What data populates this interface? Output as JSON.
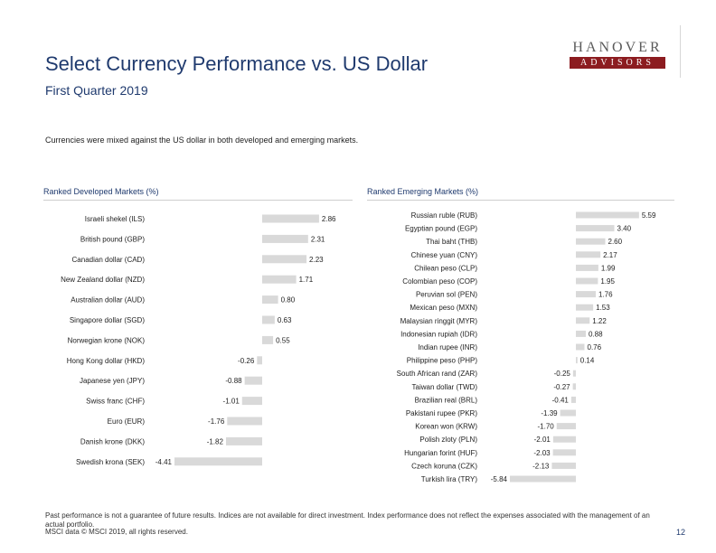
{
  "header": {
    "title": "Select Currency Performance vs. US Dollar",
    "subtitle": "First Quarter 2019",
    "intro": "Currencies were mixed against the US dollar in both developed and emerging markets."
  },
  "logo": {
    "top": "HANOVER",
    "bottom": "ADVISORS",
    "accent_color": "#8c1c20"
  },
  "chart_data": [
    {
      "type": "bar",
      "orientation": "horizontal",
      "title": "Ranked Developed Markets (%)",
      "categories": [
        "Israeli shekel (ILS)",
        "British pound (GBP)",
        "Canadian dollar (CAD)",
        "New Zealand dollar (NZD)",
        "Australian dollar (AUD)",
        "Singapore dollar (SGD)",
        "Norwegian krone (NOK)",
        "Hong Kong dollar (HKD)",
        "Japanese yen (JPY)",
        "Swiss franc (CHF)",
        "Euro (EUR)",
        "Danish krone (DKK)",
        "Swedish krona (SEK)"
      ],
      "values": [
        2.86,
        2.31,
        2.23,
        1.71,
        0.8,
        0.63,
        0.55,
        -0.26,
        -0.88,
        -1.01,
        -1.76,
        -1.82,
        -4.41
      ],
      "value_labels": [
        "2.86",
        "2.31",
        "2.23",
        "1.71",
        "0.80",
        "0.63",
        "0.55",
        "-0.26",
        "-0.88",
        "-1.01",
        "-1.76",
        "-1.82",
        "-4.41"
      ],
      "bar_color": "#d9d9d9"
    },
    {
      "type": "bar",
      "orientation": "horizontal",
      "title": "Ranked Emerging Markets (%)",
      "categories": [
        "Russian ruble (RUB)",
        "Egyptian pound (EGP)",
        "Thai baht (THB)",
        "Chinese yuan (CNY)",
        "Chilean peso (CLP)",
        "Colombian peso (COP)",
        "Peruvian sol (PEN)",
        "Mexican peso (MXN)",
        "Malaysian ringgit (MYR)",
        "Indonesian rupiah (IDR)",
        "Indian rupee (INR)",
        "Philippine peso (PHP)",
        "South African rand (ZAR)",
        "Taiwan dollar (TWD)",
        "Brazilian real (BRL)",
        "Pakistani rupee (PKR)",
        "Korean won (KRW)",
        "Polish zloty (PLN)",
        "Hungarian forint (HUF)",
        "Czech koruna (CZK)",
        "Turkish lira (TRY)"
      ],
      "values": [
        5.59,
        3.4,
        2.6,
        2.17,
        1.99,
        1.95,
        1.76,
        1.53,
        1.22,
        0.88,
        0.76,
        0.14,
        -0.25,
        -0.27,
        -0.41,
        -1.39,
        -1.7,
        -2.01,
        -2.03,
        -2.13,
        -5.84
      ],
      "value_labels": [
        "5.59",
        "3.40",
        "2.60",
        "2.17",
        "1.99",
        "1.95",
        "1.76",
        "1.53",
        "1.22",
        "0.88",
        "0.76",
        "0.14",
        "-0.25",
        "-0.27",
        "-0.41",
        "-1.39",
        "-1.70",
        "-2.01",
        "-2.03",
        "-2.13",
        "-5.84"
      ],
      "bar_color": "#d9d9d9"
    }
  ],
  "footer": {
    "disclaimer": "Past performance is not a guarantee of future results. Indices are not available for direct investment. Index performance does not reflect the expenses associated with the management of an actual portfolio.",
    "copyright": "MSCI data © MSCI 2019, all rights reserved.",
    "page_number": "12"
  }
}
